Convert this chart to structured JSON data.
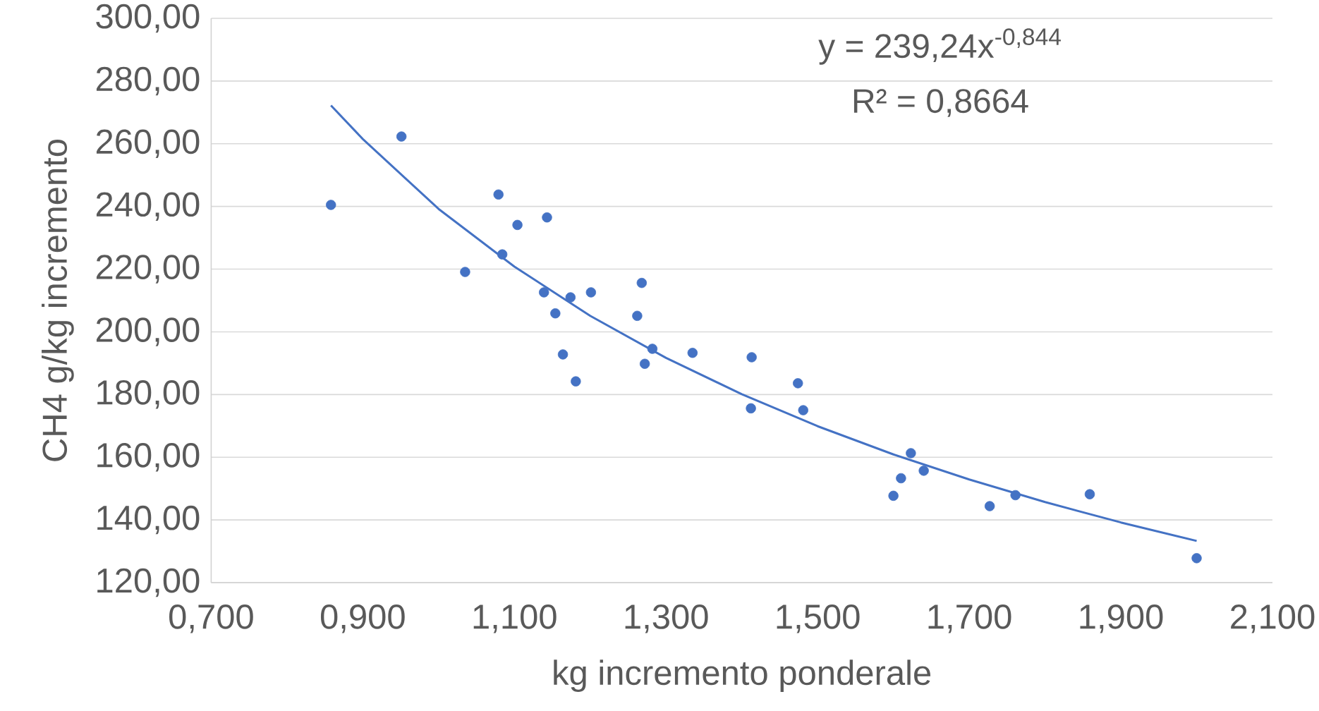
{
  "chart_data": {
    "type": "scatter",
    "xlabel": "kg incremento ponderale",
    "ylabel": "CH4 g/kg incremento",
    "xlim": [
      0.7,
      2.1
    ],
    "ylim": [
      120,
      300
    ],
    "xticks": [
      {
        "value": 0.7,
        "label": "0,700"
      },
      {
        "value": 0.9,
        "label": "0,900"
      },
      {
        "value": 1.1,
        "label": "1,100"
      },
      {
        "value": 1.3,
        "label": "1,300"
      },
      {
        "value": 1.5,
        "label": "1,500"
      },
      {
        "value": 1.7,
        "label": "1,700"
      },
      {
        "value": 1.9,
        "label": "1,900"
      },
      {
        "value": 2.1,
        "label": "2,100"
      }
    ],
    "yticks": [
      {
        "value": 120,
        "label": "120,00"
      },
      {
        "value": 140,
        "label": "140,00"
      },
      {
        "value": 160,
        "label": "160,00"
      },
      {
        "value": 180,
        "label": "180,00"
      },
      {
        "value": 200,
        "label": "200,00"
      },
      {
        "value": 220,
        "label": "220,00"
      },
      {
        "value": 240,
        "label": "240,00"
      },
      {
        "value": 260,
        "label": "260,00"
      },
      {
        "value": 280,
        "label": "280,00"
      },
      {
        "value": 300,
        "label": "300,00"
      }
    ],
    "grid": "y",
    "annotations": [
      "y = 239,24x$^{-0,844}$",
      "R² = 0,8664"
    ],
    "series": [
      {
        "type": "scatter",
        "marker": "circle",
        "color": "#4472c4",
        "x": [
          0.858,
          0.951,
          1.035,
          1.079,
          1.084,
          1.104,
          1.143,
          1.139,
          1.154,
          1.164,
          1.174,
          1.181,
          1.201,
          1.262,
          1.268,
          1.272,
          1.282,
          1.335,
          1.412,
          1.413,
          1.474,
          1.481,
          1.6,
          1.61,
          1.623,
          1.64,
          1.727,
          1.761,
          1.859,
          2.0
        ],
        "values": [
          240.5,
          262.3,
          219.1,
          243.8,
          224.7,
          234.1,
          236.5,
          212.6,
          205.9,
          192.8,
          211.0,
          184.2,
          212.6,
          205.1,
          215.6,
          189.8,
          194.6,
          193.3,
          175.6,
          191.9,
          183.6,
          175.0,
          147.7,
          153.3,
          161.3,
          155.7,
          144.4,
          147.9,
          148.2,
          127.8
        ]
      },
      {
        "type": "line",
        "marker": "none",
        "line_style": "solid",
        "color": "#4472c4",
        "x": [
          0.858,
          0.9,
          1.0,
          1.1,
          1.2,
          1.3,
          1.4,
          1.5,
          1.6,
          1.7,
          1.8,
          1.9,
          2.0
        ],
        "values": [
          272.2,
          261.5,
          239.2,
          220.8,
          205.1,
          191.7,
          180.1,
          169.9,
          160.9,
          152.9,
          145.7,
          139.2,
          133.3
        ]
      }
    ]
  }
}
